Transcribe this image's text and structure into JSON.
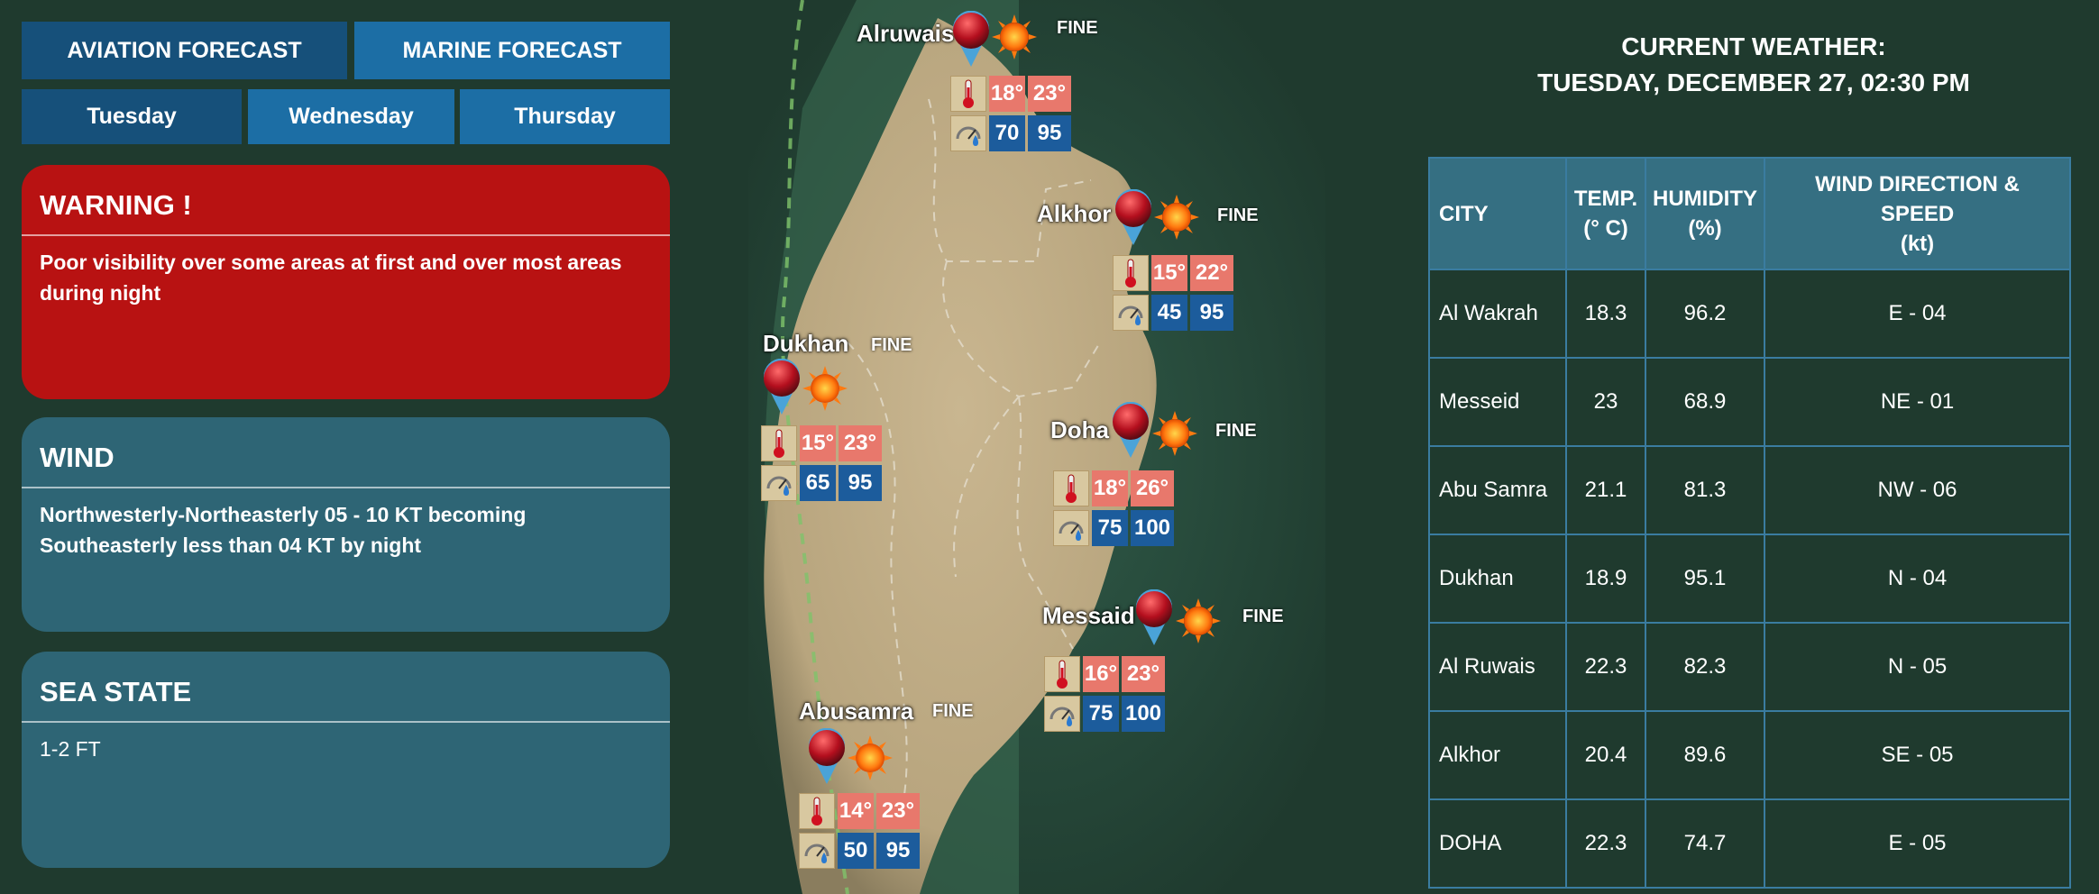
{
  "nav": {
    "aviation": "AVIATION FORECAST",
    "marine": "MARINE FORECAST",
    "days": [
      "Tuesday",
      "Wednesday",
      "Thursday"
    ]
  },
  "warning": {
    "title": "WARNING !",
    "text": "Poor visibility over some areas at first and over most areas during night"
  },
  "wind": {
    "title": "WIND",
    "text": "Northwesterly-Northeasterly 05 - 10 KT becoming Southeasterly less than 04 KT by night"
  },
  "sea_state": {
    "title": "SEA STATE",
    "text": "1-2 FT"
  },
  "map_cities": [
    {
      "name": "Alruwais",
      "condition": "FINE",
      "temp_min": "18°",
      "temp_max": "23°",
      "hum_min": "70",
      "hum_max": "95"
    },
    {
      "name": "Alkhor",
      "condition": "FINE",
      "temp_min": "15°",
      "temp_max": "22°",
      "hum_min": "45",
      "hum_max": "95"
    },
    {
      "name": "Dukhan",
      "condition": "FINE",
      "temp_min": "15°",
      "temp_max": "23°",
      "hum_min": "65",
      "hum_max": "95"
    },
    {
      "name": "Doha",
      "condition": "FINE",
      "temp_min": "18°",
      "temp_max": "26°",
      "hum_min": "75",
      "hum_max": "100"
    },
    {
      "name": "Messaid",
      "condition": "FINE",
      "temp_min": "16°",
      "temp_max": "23°",
      "hum_min": "75",
      "hum_max": "100"
    },
    {
      "name": "Abusamra",
      "condition": "FINE",
      "temp_min": "14°",
      "temp_max": "23°",
      "hum_min": "50",
      "hum_max": "95"
    }
  ],
  "current": {
    "title_line1": "CURRENT WEATHER:",
    "title_line2": "TUESDAY, DECEMBER 27, 02:30 PM",
    "headers": {
      "city": "CITY",
      "temp_1": "TEMP.",
      "temp_2": "(° C)",
      "hum_1": "HUMIDITY",
      "hum_2": "(%)",
      "wind_1": "WIND DIRECTION &",
      "wind_2": "SPEED",
      "wind_3": "(kt)"
    },
    "rows": [
      {
        "city": "Al Wakrah",
        "temp": "18.3",
        "humidity": "96.2",
        "wind": "E - 04"
      },
      {
        "city": "Messeid",
        "temp": "23",
        "humidity": "68.9",
        "wind": "NE - 01"
      },
      {
        "city": "Abu Samra",
        "temp": "21.1",
        "humidity": "81.3",
        "wind": "NW - 06"
      },
      {
        "city": "Dukhan",
        "temp": "18.9",
        "humidity": "95.1",
        "wind": "N - 04"
      },
      {
        "city": "Al Ruwais",
        "temp": "22.3",
        "humidity": "82.3",
        "wind": "N - 05"
      },
      {
        "city": "Alkhor",
        "temp": "20.4",
        "humidity": "89.6",
        "wind": "SE - 05"
      },
      {
        "city": "DOHA",
        "temp": "22.3",
        "humidity": "74.7",
        "wind": "E - 05"
      }
    ]
  },
  "colors": {
    "background": "#1f3a2e",
    "tab": "#1c6ea5",
    "tab_dark": "#16507a",
    "warning": "#b81212",
    "panel": "#2e6575",
    "temp_cell": "#e8786c",
    "humidity_cell": "#1c5c9c"
  }
}
